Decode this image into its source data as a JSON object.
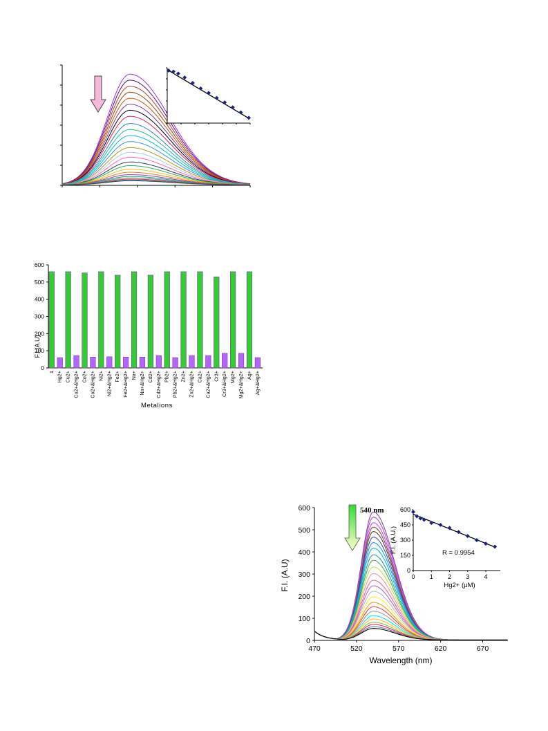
{
  "chart_data": [
    {
      "type": "line",
      "title": "",
      "xlabel": "",
      "ylabel": "",
      "peak_position_fraction": 0.36,
      "curve_peak_fractions": [
        0.92,
        0.87,
        0.82,
        0.77,
        0.72,
        0.67,
        0.62,
        0.57,
        0.51,
        0.46,
        0.41,
        0.36,
        0.31,
        0.27,
        0.23,
        0.19,
        0.16,
        0.13,
        0.105,
        0.085,
        0.07,
        0.058,
        0.048,
        0.04,
        0.034
      ],
      "series_colors": [
        "#9b30ff",
        "#5a0a7a",
        "#c0392b",
        "#8b4513",
        "#d35400",
        "#7d3c98",
        "#000000",
        "#e91e63",
        "#2e86c1",
        "#1abc9c",
        "#00bcd4",
        "#3498db",
        "#b7950b",
        "#a9cce3",
        "#ff69b4",
        "#2c3e50",
        "#27ae60",
        "#f1c40f",
        "#e67e22",
        "#8e44ad",
        "#16a085",
        "#7f8c8d",
        "#c0392b",
        "#2980b9",
        "#404040"
      ],
      "arrow": "decreasing",
      "arrow_color": "#f4b8d8",
      "inset": {
        "type": "scatter",
        "trend": "linear-decreasing",
        "points_fraction": [
          [
            0.0,
            1.0
          ],
          [
            0.06,
            0.98
          ],
          [
            0.12,
            0.94
          ],
          [
            0.2,
            0.86
          ],
          [
            0.3,
            0.75
          ],
          [
            0.4,
            0.64
          ],
          [
            0.5,
            0.55
          ],
          [
            0.6,
            0.45
          ],
          [
            0.7,
            0.36
          ],
          [
            0.8,
            0.26
          ],
          [
            0.9,
            0.16
          ],
          [
            1.0,
            0.05
          ]
        ]
      }
    },
    {
      "type": "bar",
      "ylabel": "F.I.(A.U)",
      "xlabel": "Metalions",
      "ylim": [
        0,
        600
      ],
      "yticks": [
        "0",
        "100",
        "200",
        "300",
        "400",
        "500",
        "600"
      ],
      "categories": [
        "1",
        "Hg2+",
        "Cu2+",
        "Cu2+&Hg2+",
        "Co2+",
        "Co2+&Hg2+",
        "Ni2+",
        "Ni2+&Hg2+",
        "Fe2+",
        "Fe2+&Hg2+",
        "Na+",
        "Na+&Hg2+",
        "Cd2+",
        "Cd2+&Hg2+",
        "Pb2+",
        "Pb2+&Hg2+",
        "Zn2+",
        "Zn2+&Hg2+",
        "Ca2+",
        "Ca2+&Hg2+",
        "Cr3+",
        "Cr3+&Hg2+",
        "Mg2+",
        "Mg2+&Hg2+",
        "Ag+",
        "Ag+&Hg2+"
      ],
      "values": [
        560,
        60,
        560,
        72,
        553,
        63,
        560,
        65,
        540,
        63,
        560,
        63,
        540,
        72,
        560,
        60,
        560,
        72,
        560,
        72,
        530,
        85,
        560,
        85,
        560,
        60
      ],
      "colors": [
        "#33cc33",
        "#b266ff"
      ]
    },
    {
      "type": "line",
      "ylabel": "F.I. (A.U)",
      "xlabel": "Wavelength (nm)",
      "xlim": [
        470,
        700
      ],
      "ylim": [
        0,
        600
      ],
      "xticks": [
        "470",
        "520",
        "570",
        "620",
        "670"
      ],
      "yticks": [
        "0",
        "100",
        "200",
        "300",
        "400",
        "500",
        "600"
      ],
      "peak_wavelength": 540,
      "annotation": "540 nm",
      "start_value_470": 40,
      "curve_peaks": [
        578,
        555,
        530,
        510,
        490,
        465,
        440,
        415,
        385,
        360,
        330,
        300,
        270,
        245,
        220,
        195,
        170,
        150,
        130,
        110,
        95,
        80,
        70,
        60,
        52
      ],
      "series_colors": [
        "#8e44ad",
        "#9b59b6",
        "#e040fb",
        "#795548",
        "#5d4037",
        "#3f51b5",
        "#2196f3",
        "#00bcd4",
        "#26a69a",
        "#4caf50",
        "#cddc39",
        "#ef9a9a",
        "#f06292",
        "#ba68c8",
        "#b0bec5",
        "#ffeb3b",
        "#ff9800",
        "#f44336",
        "#9e9e9e",
        "#00e5ff",
        "#ffc107",
        "#8bc34a",
        "#e91e63",
        "#607d8b",
        "#000000"
      ],
      "arrow_gradient": [
        "#33dd33",
        "#ffffcc"
      ],
      "inset": {
        "type": "scatter",
        "xlabel": "Hg2+ (μM)",
        "ylabel": "F.I. (A.U.)",
        "xlim": [
          0,
          4.8
        ],
        "ylim": [
          0,
          600
        ],
        "xticks": [
          "0",
          "1",
          "2",
          "3",
          "4"
        ],
        "yticks": [
          "0",
          "150",
          "300",
          "450",
          "600"
        ],
        "annotation": "R = 0.9954",
        "points": [
          [
            0,
            578
          ],
          [
            0.2,
            535
          ],
          [
            0.4,
            515
          ],
          [
            0.6,
            500
          ],
          [
            1.0,
            470
          ],
          [
            1.5,
            450
          ],
          [
            2.0,
            420
          ],
          [
            2.5,
            380
          ],
          [
            3.0,
            340
          ],
          [
            3.5,
            300
          ],
          [
            4.0,
            265
          ],
          [
            4.5,
            235
          ]
        ]
      }
    }
  ]
}
